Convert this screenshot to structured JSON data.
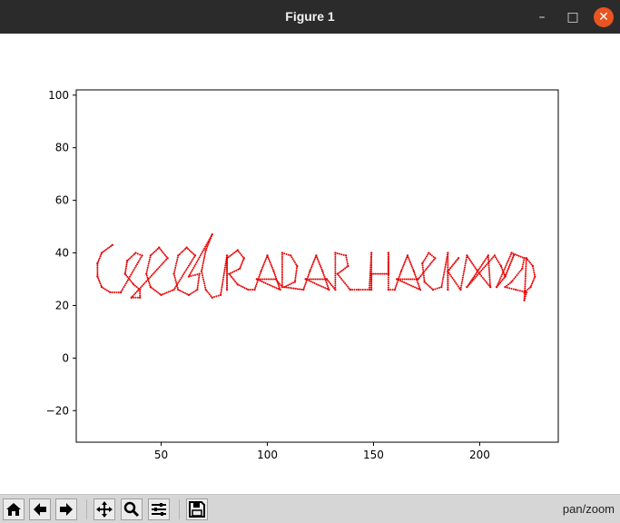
{
  "window": {
    "title": "Figure 1",
    "controls": {
      "minimize": "–",
      "maximize": "□",
      "close": "✕"
    }
  },
  "toolbar": {
    "buttons": [
      {
        "name": "home-button",
        "icon": "home-icon",
        "tooltip": "Reset original view"
      },
      {
        "name": "back-button",
        "icon": "arrow-left-icon",
        "tooltip": "Back"
      },
      {
        "name": "forward-button",
        "icon": "arrow-right-icon",
        "tooltip": "Forward"
      },
      {
        "name": "pan-button",
        "icon": "move-arrows-icon",
        "tooltip": "Pan"
      },
      {
        "name": "zoom-button",
        "icon": "magnifier-icon",
        "tooltip": "Zoom"
      },
      {
        "name": "subplots-button",
        "icon": "sliders-icon",
        "tooltip": "Configure subplots"
      },
      {
        "name": "save-button",
        "icon": "floppy-disk-icon",
        "tooltip": "Save"
      }
    ],
    "mode": "pan/zoom"
  },
  "colors": {
    "stroke": "#e60000",
    "titlebar": "#2b2b2b",
    "close": "#e95420",
    "toolbar": "#d6d6d6"
  },
  "chart_data": {
    "type": "scatter",
    "title": "",
    "xlabel": "",
    "ylabel": "",
    "xlim": [
      10,
      237
    ],
    "ylim": [
      -32,
      102
    ],
    "xticks": [
      50,
      100,
      150,
      200
    ],
    "yticks": [
      -20,
      0,
      20,
      40,
      60,
      80,
      100
    ],
    "grid": false,
    "marker_color": "#e60000",
    "series": [
      {
        "points": [
          [
            27,
            43
          ],
          [
            22,
            40
          ],
          [
            20,
            36
          ],
          [
            20,
            31
          ],
          [
            22,
            27
          ],
          [
            26,
            25
          ],
          [
            31,
            25
          ],
          [
            41,
            39
          ],
          [
            38,
            40
          ],
          [
            34,
            37
          ],
          [
            33,
            32
          ],
          [
            37,
            28
          ],
          [
            40,
            26
          ],
          [
            40,
            23
          ],
          [
            36,
            23
          ],
          [
            53,
            38
          ],
          [
            49,
            42
          ],
          [
            45,
            39
          ],
          [
            43,
            32
          ],
          [
            45,
            27
          ],
          [
            50,
            24
          ],
          [
            56,
            26
          ],
          [
            66,
            39
          ],
          [
            62,
            42
          ],
          [
            58,
            39
          ],
          [
            56,
            32
          ],
          [
            58,
            26
          ],
          [
            63,
            24
          ],
          [
            67,
            26
          ],
          [
            68,
            32
          ],
          [
            63,
            31
          ],
          [
            74,
            47
          ],
          [
            71,
            41
          ],
          [
            69,
            33
          ],
          [
            71,
            26
          ],
          [
            74,
            23
          ],
          [
            78,
            24
          ],
          [
            81,
            39
          ],
          [
            81,
            26
          ],
          [
            81,
            38
          ],
          [
            86,
            41
          ],
          [
            89,
            38
          ],
          [
            87,
            34
          ],
          [
            82,
            32
          ],
          [
            86,
            28
          ],
          [
            91,
            26
          ],
          [
            94,
            26
          ],
          [
            97,
            33
          ],
          [
            100,
            39
          ],
          [
            103,
            33
          ],
          [
            106,
            26
          ],
          [
            95,
            30
          ],
          [
            104,
            30
          ],
          [
            107,
            27
          ],
          [
            107,
            40
          ],
          [
            111,
            39
          ],
          [
            114,
            35
          ],
          [
            113,
            29
          ],
          [
            108,
            27
          ],
          [
            117,
            26
          ],
          [
            120,
            33
          ],
          [
            123,
            39
          ],
          [
            126,
            33
          ],
          [
            129,
            26
          ],
          [
            118,
            30
          ],
          [
            128,
            30
          ],
          [
            132,
            26
          ],
          [
            132,
            40
          ],
          [
            137,
            39
          ],
          [
            138,
            35
          ],
          [
            133,
            32
          ],
          [
            139,
            26
          ],
          [
            139,
            26
          ],
          [
            143,
            26
          ],
          [
            148,
            26
          ],
          [
            149,
            40
          ],
          [
            149,
            26
          ],
          [
            149,
            32
          ],
          [
            157,
            32
          ],
          [
            157,
            40
          ],
          [
            157,
            26
          ],
          [
            160,
            26
          ],
          [
            163,
            33
          ],
          [
            166,
            39
          ],
          [
            169,
            33
          ],
          [
            172,
            26
          ],
          [
            161,
            30
          ],
          [
            171,
            30
          ],
          [
            179,
            38
          ],
          [
            176,
            40
          ],
          [
            173,
            36
          ],
          [
            174,
            29
          ],
          [
            178,
            26
          ],
          [
            182,
            27
          ],
          [
            185,
            40
          ],
          [
            185,
            26
          ],
          [
            185,
            33
          ],
          [
            190,
            38
          ],
          [
            185,
            33
          ],
          [
            191,
            26
          ],
          [
            194,
            39
          ],
          [
            199,
            33
          ],
          [
            205,
            27
          ],
          [
            204,
            39
          ],
          [
            199,
            33
          ],
          [
            194,
            27
          ],
          [
            207,
            39
          ],
          [
            210,
            35
          ],
          [
            212,
            31
          ],
          [
            216,
            39
          ],
          [
            212,
            31
          ],
          [
            208,
            27
          ],
          [
            215,
            40
          ],
          [
            221,
            38
          ],
          [
            220,
            34
          ],
          [
            215,
            29
          ],
          [
            212,
            27
          ],
          [
            217,
            26
          ],
          [
            222,
            25
          ],
          [
            221,
            22
          ],
          [
            222,
            38
          ],
          [
            225,
            35
          ],
          [
            226,
            31
          ],
          [
            224,
            27
          ],
          [
            221,
            25
          ]
        ]
      }
    ]
  }
}
